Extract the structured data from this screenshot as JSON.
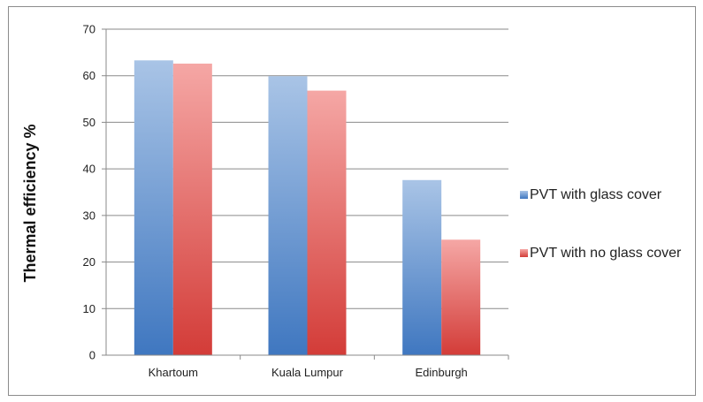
{
  "chart_data": {
    "type": "bar",
    "title": "",
    "xlabel": "",
    "ylabel": "Thermal efficiency %",
    "categories": [
      "Khartoum",
      "Kuala Lumpur",
      "Edinburgh"
    ],
    "series": [
      {
        "name": "PVT with glass cover",
        "values": [
          63.3,
          59.9,
          37.6
        ],
        "color_top": "#a9c4e6",
        "color_bottom": "#3f77c0"
      },
      {
        "name": "PVT with no glass cover",
        "values": [
          62.6,
          56.8,
          24.8
        ],
        "color_top": "#f5a7a5",
        "color_bottom": "#d33c38"
      }
    ],
    "ylim": [
      0,
      70
    ],
    "yticks": [
      "0",
      "10",
      "20",
      "30",
      "40",
      "50",
      "60",
      "70"
    ],
    "grid": true,
    "legend_position": "right"
  }
}
